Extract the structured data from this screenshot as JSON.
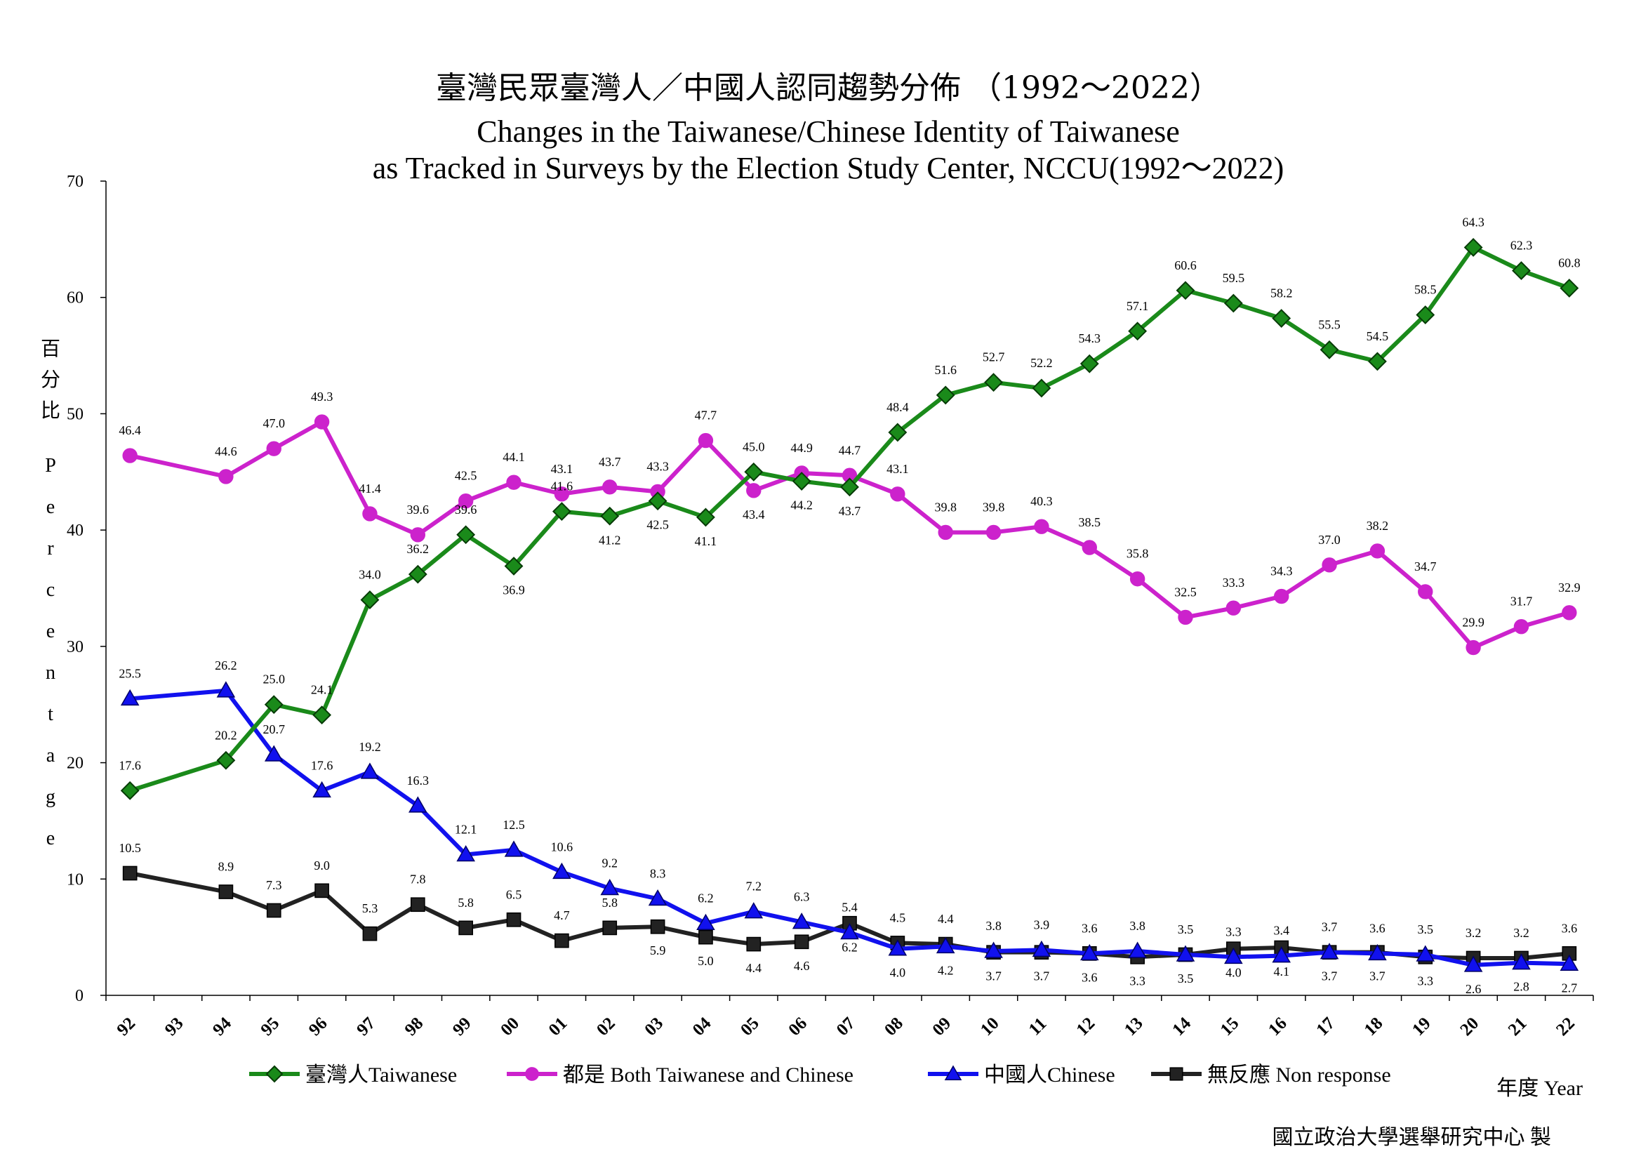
{
  "chart_data": {
    "type": "line",
    "title": "臺灣民眾臺灣人／中國人認同趨勢分佈 （1992～2022）",
    "subtitle_line1": "Changes in the Taiwanese/Chinese Identity of Taiwanese",
    "subtitle_line2": "as Tracked in Surveys by the Election Study Center, NCCU(1992～2022)",
    "ylabel_zh": [
      "百",
      "分",
      "比"
    ],
    "ylabel_en": [
      "P",
      "e",
      "r",
      "c",
      "e",
      "n",
      "t",
      "a",
      "g",
      "e"
    ],
    "xlabel": "年度 Year",
    "credit": "國立政治大學選舉研究中心 製",
    "ylim": [
      0,
      70
    ],
    "yticks": [
      "0",
      "10",
      "20",
      "30",
      "40",
      "50",
      "60",
      "70"
    ],
    "categories": [
      "92",
      "93",
      "94",
      "95",
      "96",
      "97",
      "98",
      "99",
      "00",
      "01",
      "02",
      "03",
      "04",
      "05",
      "06",
      "07",
      "08",
      "09",
      "10",
      "11",
      "12",
      "13",
      "14",
      "15",
      "16",
      "17",
      "18",
      "19",
      "20",
      "21",
      "22"
    ],
    "grid": false,
    "legend_position": "bottom",
    "series": [
      {
        "name": "臺灣人Taiwanese",
        "color": "#1a8a1a",
        "marker": "diamond",
        "values": [
          17.6,
          null,
          20.2,
          25.0,
          24.1,
          34.0,
          36.2,
          39.6,
          36.9,
          41.6,
          41.2,
          42.5,
          41.1,
          45.0,
          44.2,
          43.7,
          48.4,
          51.6,
          52.7,
          52.2,
          54.3,
          57.1,
          60.6,
          59.5,
          58.2,
          55.5,
          54.5,
          58.5,
          64.3,
          62.3,
          60.8
        ],
        "labels": [
          "17.6",
          "",
          "20.2",
          "25.0",
          "24.1",
          "34.0",
          "36.2",
          "39.6",
          "36.9",
          "41.6",
          "41.2",
          "42.5",
          "41.1",
          "45.0",
          "44.2",
          "43.7",
          "48.4",
          "51.6",
          "52.7",
          "52.2",
          "54.3",
          "57.1",
          "60.6",
          "59.5",
          "58.2",
          "55.5",
          "54.5",
          "58.5",
          "64.3",
          "62.3",
          "60.8"
        ]
      },
      {
        "name": "都是 Both Taiwanese and Chinese",
        "color": "#cc22cc",
        "marker": "circle",
        "values": [
          46.4,
          null,
          44.6,
          47.0,
          49.3,
          41.4,
          39.6,
          42.5,
          44.1,
          43.1,
          43.7,
          43.3,
          47.7,
          43.4,
          44.9,
          44.7,
          43.1,
          39.8,
          39.8,
          40.3,
          38.5,
          35.8,
          32.5,
          33.3,
          34.3,
          37.0,
          38.2,
          34.7,
          29.9,
          31.7,
          32.9
        ],
        "labels": [
          "46.4",
          "",
          "44.6",
          "47.0",
          "49.3",
          "41.4",
          "39.6",
          "42.5",
          "44.1",
          "43.1",
          "43.7",
          "43.3",
          "47.7",
          "43.4",
          "44.9",
          "44.7",
          "43.1",
          "39.8",
          "39.8",
          "40.3",
          "38.5",
          "35.8",
          "32.5",
          "33.3",
          "34.3",
          "37.0",
          "38.2",
          "34.7",
          "29.9",
          "31.7",
          "32.9"
        ]
      },
      {
        "name": "中國人Chinese",
        "color": "#1111ee",
        "marker": "triangle",
        "values": [
          25.5,
          null,
          26.2,
          20.7,
          17.6,
          19.2,
          16.3,
          12.1,
          12.5,
          10.6,
          9.2,
          8.3,
          6.2,
          7.2,
          6.3,
          5.4,
          4.0,
          4.2,
          3.8,
          3.9,
          3.6,
          3.8,
          3.5,
          3.3,
          3.4,
          3.7,
          3.6,
          3.5,
          2.6,
          2.8,
          2.7
        ],
        "labels": [
          "25.5",
          "",
          "26.2",
          "20.7",
          "17.6",
          "19.2",
          "16.3",
          "12.1",
          "12.5",
          "10.6",
          "9.2",
          "8.3",
          "6.2",
          "7.2",
          "6.3",
          "5.4",
          "4.0",
          "4.2",
          "3.8",
          "3.9",
          "3.6",
          "3.8",
          "3.5",
          "3.3",
          "3.4",
          "3.7",
          "3.6",
          "3.5",
          "2.6",
          "2.8",
          "2.7"
        ]
      },
      {
        "name": "無反應 Non response",
        "color": "#222222",
        "marker": "square",
        "values": [
          10.5,
          null,
          8.9,
          7.3,
          9.0,
          5.3,
          7.8,
          5.8,
          6.5,
          4.7,
          5.8,
          5.9,
          5.0,
          4.4,
          4.6,
          6.2,
          4.5,
          4.4,
          3.7,
          3.7,
          3.6,
          3.3,
          3.5,
          4.0,
          4.1,
          3.7,
          3.7,
          3.3,
          3.2,
          3.2,
          3.6
        ],
        "labels": [
          "10.5",
          "",
          "8.9",
          "7.3",
          "9.0",
          "5.3",
          "7.8",
          "5.8",
          "6.5",
          "4.7",
          "5.8",
          "5.9",
          "5.0",
          "4.4",
          "4.6",
          "6.2",
          "4.5",
          "4.4",
          "3.7",
          "3.7",
          "3.6",
          "3.3",
          "3.5",
          "4.0",
          "4.1",
          "3.7",
          "3.7",
          "3.3",
          "3.2",
          "3.2",
          "3.6"
        ]
      }
    ]
  }
}
